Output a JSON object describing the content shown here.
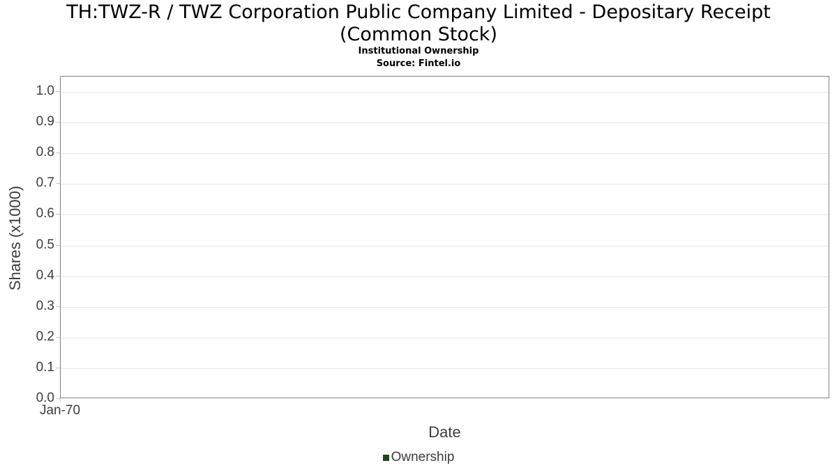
{
  "chart_data": {
    "type": "line",
    "title": "TH:TWZ-R / TWZ Corporation Public Company Limited - Depositary Receipt (Common Stock)",
    "subtitle": "Institutional Ownership",
    "source": "Source: Fintel.io",
    "xlabel": "Date",
    "ylabel": "Shares (x1000)",
    "x_tick_labels": [
      "Jan-70"
    ],
    "y_tick_labels": [
      "0.0",
      "0.1",
      "0.2",
      "0.3",
      "0.4",
      "0.5",
      "0.6",
      "0.7",
      "0.8",
      "0.9",
      "1.0"
    ],
    "y_tick_values": [
      0,
      0.1,
      0.2,
      0.3,
      0.4,
      0.5,
      0.6,
      0.7,
      0.8,
      0.9,
      1.0
    ],
    "ylim": [
      0,
      1.05
    ],
    "grid": "horizontal",
    "legend": {
      "position": "bottom",
      "entries": [
        {
          "label": "Ownership",
          "color": "#1e4620"
        }
      ]
    },
    "series": [
      {
        "name": "Ownership",
        "x": [],
        "y": [],
        "color": "#1e4620"
      }
    ],
    "colors": {
      "grid": "#e6e6e6",
      "border": "#808080",
      "tick": "#c8c8c8",
      "axis_text": "#3d3d3d",
      "title_text": "#000000"
    }
  }
}
